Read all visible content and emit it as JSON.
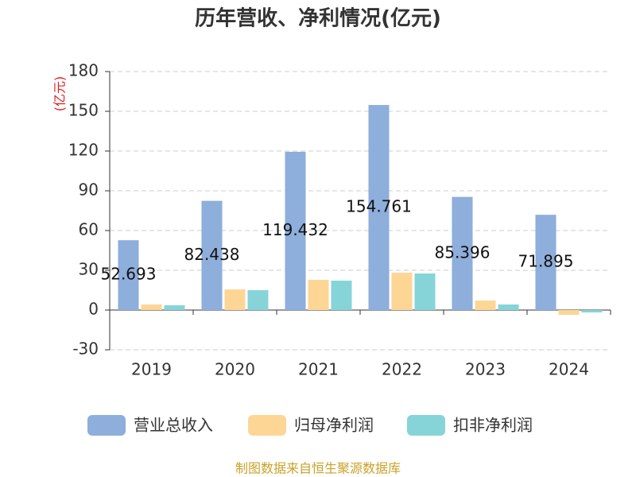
{
  "chart_data": {
    "type": "bar",
    "title": "历年营收、净利情况(亿元)",
    "y_label": "(亿元)",
    "source": "制图数据来自恒生聚源数据库",
    "categories": [
      "2019",
      "2020",
      "2021",
      "2022",
      "2023",
      "2024"
    ],
    "series": [
      {
        "name": "营业总收入",
        "color": "#8eaedb",
        "values": [
          52.693,
          82.438,
          119.432,
          154.761,
          85.396,
          71.895
        ]
      },
      {
        "name": "归母净利润",
        "color": "#fdd696",
        "values": [
          4.2,
          15.6,
          22.8,
          28.2,
          7.2,
          -3.6
        ]
      },
      {
        "name": "扣非净利润",
        "color": "#86d4d8",
        "values": [
          3.6,
          15,
          22.2,
          27.6,
          4.2,
          -1.8
        ]
      }
    ],
    "ylim": [
      -30,
      180
    ],
    "yticks": [
      -30,
      0,
      30,
      60,
      90,
      120,
      150,
      180
    ],
    "grid": true
  }
}
